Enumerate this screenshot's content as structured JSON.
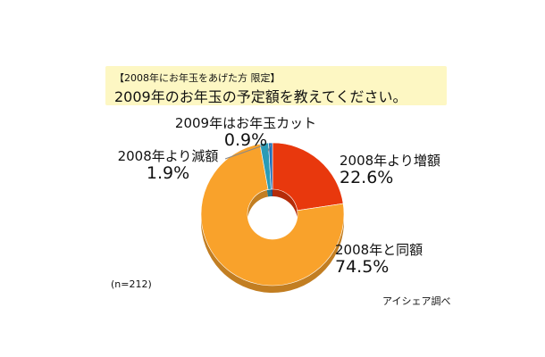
{
  "title": {
    "subtitle": "【2008年にお年玉をあげた方 限定】",
    "main": "2009年のお年玉の予定額を教えてください。"
  },
  "note": "(n=212)",
  "source": "アイシェア調べ",
  "colors": {
    "title_bg": "#fdf7c3",
    "increase": "#e8380d",
    "same": "#f9a22b",
    "decrease": "#2a9bb6",
    "cut": "#1f6fb8"
  },
  "chart_data": {
    "type": "pie",
    "style": "donut",
    "start": "12 o'clock, clockwise",
    "slices": [
      {
        "label": "2008年より増額",
        "value": 22.6,
        "value_label": "22.6%",
        "color": "#e8380d"
      },
      {
        "label": "2008年と同額",
        "value": 74.5,
        "value_label": "74.5%",
        "color": "#f9a22b"
      },
      {
        "label": "2008年より減額",
        "value": 1.9,
        "value_label": "1.9%",
        "color": "#2a9bb6"
      },
      {
        "label": "2009年はお年玉カット",
        "value": 0.9,
        "value_label": "0.9%",
        "color": "#1f6fb8"
      }
    ]
  }
}
